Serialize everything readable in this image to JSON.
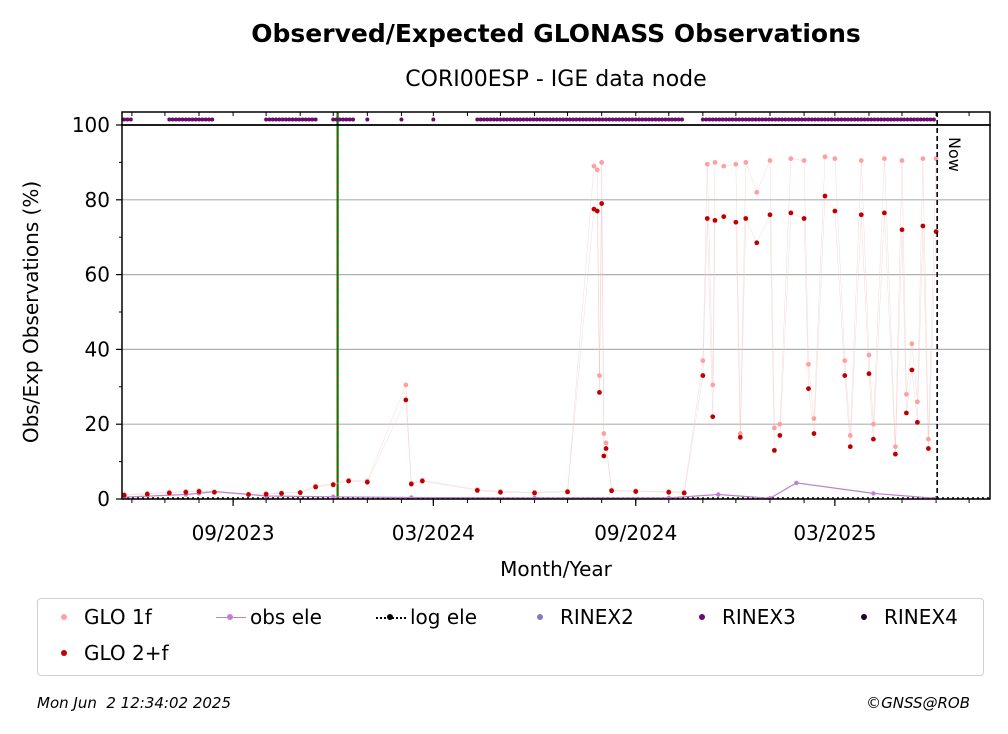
{
  "chart_data": {
    "type": "scatter",
    "title": "Observed/Expected GLONASS Observations",
    "subtitle": "CORI00ESP - IGE data node",
    "xlabel": "Month/Year",
    "ylabel": "Obs/Exp Observations (%)",
    "ylim": [
      0,
      100
    ],
    "yticks": [
      0,
      20,
      40,
      60,
      80,
      100
    ],
    "xlim": [
      "2023-05-23",
      "2025-07-20"
    ],
    "xticks": [
      {
        "date": "2023-09-01",
        "label": "09/2023"
      },
      {
        "date": "2024-03-01",
        "label": "03/2024"
      },
      {
        "date": "2024-09-01",
        "label": "09/2024"
      },
      {
        "date": "2025-03-01",
        "label": "03/2025"
      }
    ],
    "grid": "horizontal",
    "now_label": "Now",
    "now_date": "2025-06-02",
    "event_date": "2023-12-05",
    "series": [
      {
        "name": "GLO 1f",
        "color": "#ffa0a0",
        "points": [
          [
            "2023-05-25",
            1.2
          ],
          [
            "2023-06-15",
            1.5
          ],
          [
            "2023-07-05",
            1.8
          ],
          [
            "2023-07-20",
            2.0
          ],
          [
            "2023-08-01",
            2.2
          ],
          [
            "2023-08-15",
            1.9
          ],
          [
            "2023-09-15",
            1.3
          ],
          [
            "2023-10-01",
            1.4
          ],
          [
            "2023-10-15",
            1.6
          ],
          [
            "2023-11-01",
            1.8
          ],
          [
            "2023-11-15",
            3.5
          ],
          [
            "2023-12-01",
            4.0
          ],
          [
            "2023-12-15",
            5.0
          ],
          [
            "2024-01-01",
            4.8
          ],
          [
            "2024-02-05",
            30.5
          ],
          [
            "2024-02-10",
            4.2
          ],
          [
            "2024-02-20",
            5.0
          ],
          [
            "2024-04-10",
            2.5
          ],
          [
            "2024-05-01",
            2.0
          ],
          [
            "2024-06-01",
            1.8
          ],
          [
            "2024-07-01",
            2.1
          ],
          [
            "2024-07-25",
            89
          ],
          [
            "2024-07-28",
            88
          ],
          [
            "2024-07-30",
            33
          ],
          [
            "2024-08-01",
            90
          ],
          [
            "2024-08-03",
            17.5
          ],
          [
            "2024-08-05",
            15
          ],
          [
            "2024-08-10",
            2.4
          ],
          [
            "2024-09-01",
            2.2
          ],
          [
            "2024-10-01",
            2.0
          ],
          [
            "2024-10-15",
            1.8
          ],
          [
            "2024-11-01",
            37
          ],
          [
            "2024-11-05",
            89.5
          ],
          [
            "2024-11-10",
            30.5
          ],
          [
            "2024-11-12",
            90
          ],
          [
            "2024-11-20",
            89
          ],
          [
            "2024-12-01",
            89.5
          ],
          [
            "2024-12-05",
            17.5
          ],
          [
            "2024-12-10",
            90
          ],
          [
            "2024-12-20",
            82
          ],
          [
            "2025-01-01",
            90.5
          ],
          [
            "2025-01-05",
            19
          ],
          [
            "2025-01-10",
            20
          ],
          [
            "2025-01-20",
            91
          ],
          [
            "2025-02-01",
            90.5
          ],
          [
            "2025-02-05",
            36
          ],
          [
            "2025-02-10",
            21.5
          ],
          [
            "2025-02-20",
            91.5
          ],
          [
            "2025-03-01",
            91
          ],
          [
            "2025-03-10",
            37
          ],
          [
            "2025-03-15",
            17
          ],
          [
            "2025-03-25",
            90.5
          ],
          [
            "2025-04-01",
            38.5
          ],
          [
            "2025-04-05",
            20
          ],
          [
            "2025-04-15",
            91
          ],
          [
            "2025-04-25",
            14
          ],
          [
            "2025-05-01",
            90.5
          ],
          [
            "2025-05-05",
            28
          ],
          [
            "2025-05-10",
            41.5
          ],
          [
            "2025-05-15",
            26
          ],
          [
            "2025-05-20",
            91
          ],
          [
            "2025-05-25",
            16
          ],
          [
            "2025-06-01",
            91
          ]
        ]
      },
      {
        "name": "GLO 2+f",
        "color": "#c00000",
        "points": [
          [
            "2023-05-25",
            1.0
          ],
          [
            "2023-06-15",
            1.3
          ],
          [
            "2023-07-05",
            1.6
          ],
          [
            "2023-07-20",
            1.8
          ],
          [
            "2023-08-01",
            2.0
          ],
          [
            "2023-08-15",
            1.8
          ],
          [
            "2023-09-15",
            1.2
          ],
          [
            "2023-10-01",
            1.3
          ],
          [
            "2023-10-15",
            1.5
          ],
          [
            "2023-11-01",
            1.7
          ],
          [
            "2023-11-15",
            3.2
          ],
          [
            "2023-12-01",
            3.8
          ],
          [
            "2023-12-15",
            4.8
          ],
          [
            "2024-01-01",
            4.5
          ],
          [
            "2024-02-05",
            26.5
          ],
          [
            "2024-02-10",
            4.0
          ],
          [
            "2024-02-20",
            4.8
          ],
          [
            "2024-04-10",
            2.3
          ],
          [
            "2024-05-01",
            1.8
          ],
          [
            "2024-06-01",
            1.6
          ],
          [
            "2024-07-01",
            1.9
          ],
          [
            "2024-07-25",
            77.5
          ],
          [
            "2024-07-28",
            77
          ],
          [
            "2024-07-30",
            28.5
          ],
          [
            "2024-08-01",
            79
          ],
          [
            "2024-08-03",
            11.5
          ],
          [
            "2024-08-05",
            13.5
          ],
          [
            "2024-08-10",
            2.2
          ],
          [
            "2024-09-01",
            2.0
          ],
          [
            "2024-10-01",
            1.8
          ],
          [
            "2024-10-15",
            1.6
          ],
          [
            "2024-11-01",
            33
          ],
          [
            "2024-11-05",
            75
          ],
          [
            "2024-11-10",
            22
          ],
          [
            "2024-11-12",
            74.5
          ],
          [
            "2024-11-20",
            75.5
          ],
          [
            "2024-12-01",
            74
          ],
          [
            "2024-12-05",
            16.5
          ],
          [
            "2024-12-10",
            75
          ],
          [
            "2024-12-20",
            68.5
          ],
          [
            "2025-01-01",
            76
          ],
          [
            "2025-01-05",
            13
          ],
          [
            "2025-01-10",
            17
          ],
          [
            "2025-01-20",
            76.5
          ],
          [
            "2025-02-01",
            75
          ],
          [
            "2025-02-05",
            29.5
          ],
          [
            "2025-02-10",
            17.5
          ],
          [
            "2025-02-20",
            81
          ],
          [
            "2025-03-01",
            77
          ],
          [
            "2025-03-10",
            33
          ],
          [
            "2025-03-15",
            14
          ],
          [
            "2025-03-25",
            76
          ],
          [
            "2025-04-01",
            33.5
          ],
          [
            "2025-04-05",
            16
          ],
          [
            "2025-04-15",
            76.5
          ],
          [
            "2025-04-25",
            12
          ],
          [
            "2025-05-01",
            72
          ],
          [
            "2025-05-05",
            23
          ],
          [
            "2025-05-10",
            34.5
          ],
          [
            "2025-05-15",
            20.5
          ],
          [
            "2025-05-20",
            73
          ],
          [
            "2025-05-25",
            13.5
          ],
          [
            "2025-06-01",
            71.5
          ]
        ]
      },
      {
        "name": "obs ele",
        "color": "#c080d0",
        "points": [
          [
            "2023-05-25",
            0.5
          ],
          [
            "2023-07-20",
            1.2
          ],
          [
            "2023-08-01",
            1.5
          ],
          [
            "2023-08-15",
            2.0
          ],
          [
            "2023-10-01",
            0.8
          ],
          [
            "2023-12-01",
            0.6
          ],
          [
            "2024-02-10",
            0.4
          ],
          [
            "2024-06-01",
            0.3
          ],
          [
            "2024-10-01",
            0.3
          ],
          [
            "2024-11-15",
            1.2
          ],
          [
            "2025-01-01",
            0.2
          ],
          [
            "2025-01-25",
            4.3
          ],
          [
            "2025-04-05",
            1.5
          ],
          [
            "2025-06-01",
            0.2
          ]
        ]
      },
      {
        "name": "log ele",
        "color": "#000000",
        "values": [
          0
        ]
      },
      {
        "name": "RINEX2",
        "color": "#8878c0",
        "values": []
      },
      {
        "name": "RINEX3",
        "color": "#6a0a6a",
        "spans": [
          [
            "2023-05-25",
            "2023-06-01"
          ],
          [
            "2023-07-05",
            "2023-08-15"
          ],
          [
            "2023-10-01",
            "2023-11-15"
          ],
          [
            "2023-12-01",
            "2023-12-20"
          ],
          [
            "2024-01-01",
            "2024-01-01"
          ],
          [
            "2024-02-01",
            "2024-02-01"
          ],
          [
            "2024-03-01",
            "2024-03-01"
          ],
          [
            "2024-04-10",
            "2024-10-15"
          ],
          [
            "2024-11-01",
            "2025-06-01"
          ]
        ]
      },
      {
        "name": "RINEX4",
        "color": "#200020",
        "values": []
      }
    ]
  },
  "legend": [
    {
      "label": "GLO 1f",
      "color": "#ffa0a0",
      "style": "dot"
    },
    {
      "label": "obs ele",
      "color": "#c080d0",
      "style": "line-dot"
    },
    {
      "label": "log ele",
      "color": "#000000",
      "style": "dotted-dot"
    },
    {
      "label": "RINEX2",
      "color": "#8878c0",
      "style": "dot"
    },
    {
      "label": "RINEX3",
      "color": "#6a0a6a",
      "style": "dot"
    },
    {
      "label": "RINEX4",
      "color": "#200020",
      "style": "dot"
    },
    {
      "label": "GLO 2+f",
      "color": "#c00000",
      "style": "dot"
    }
  ],
  "footer": {
    "timestamp": "Mon Jun  2 12:34:02 2025",
    "credit": "©GNSS@ROB"
  }
}
